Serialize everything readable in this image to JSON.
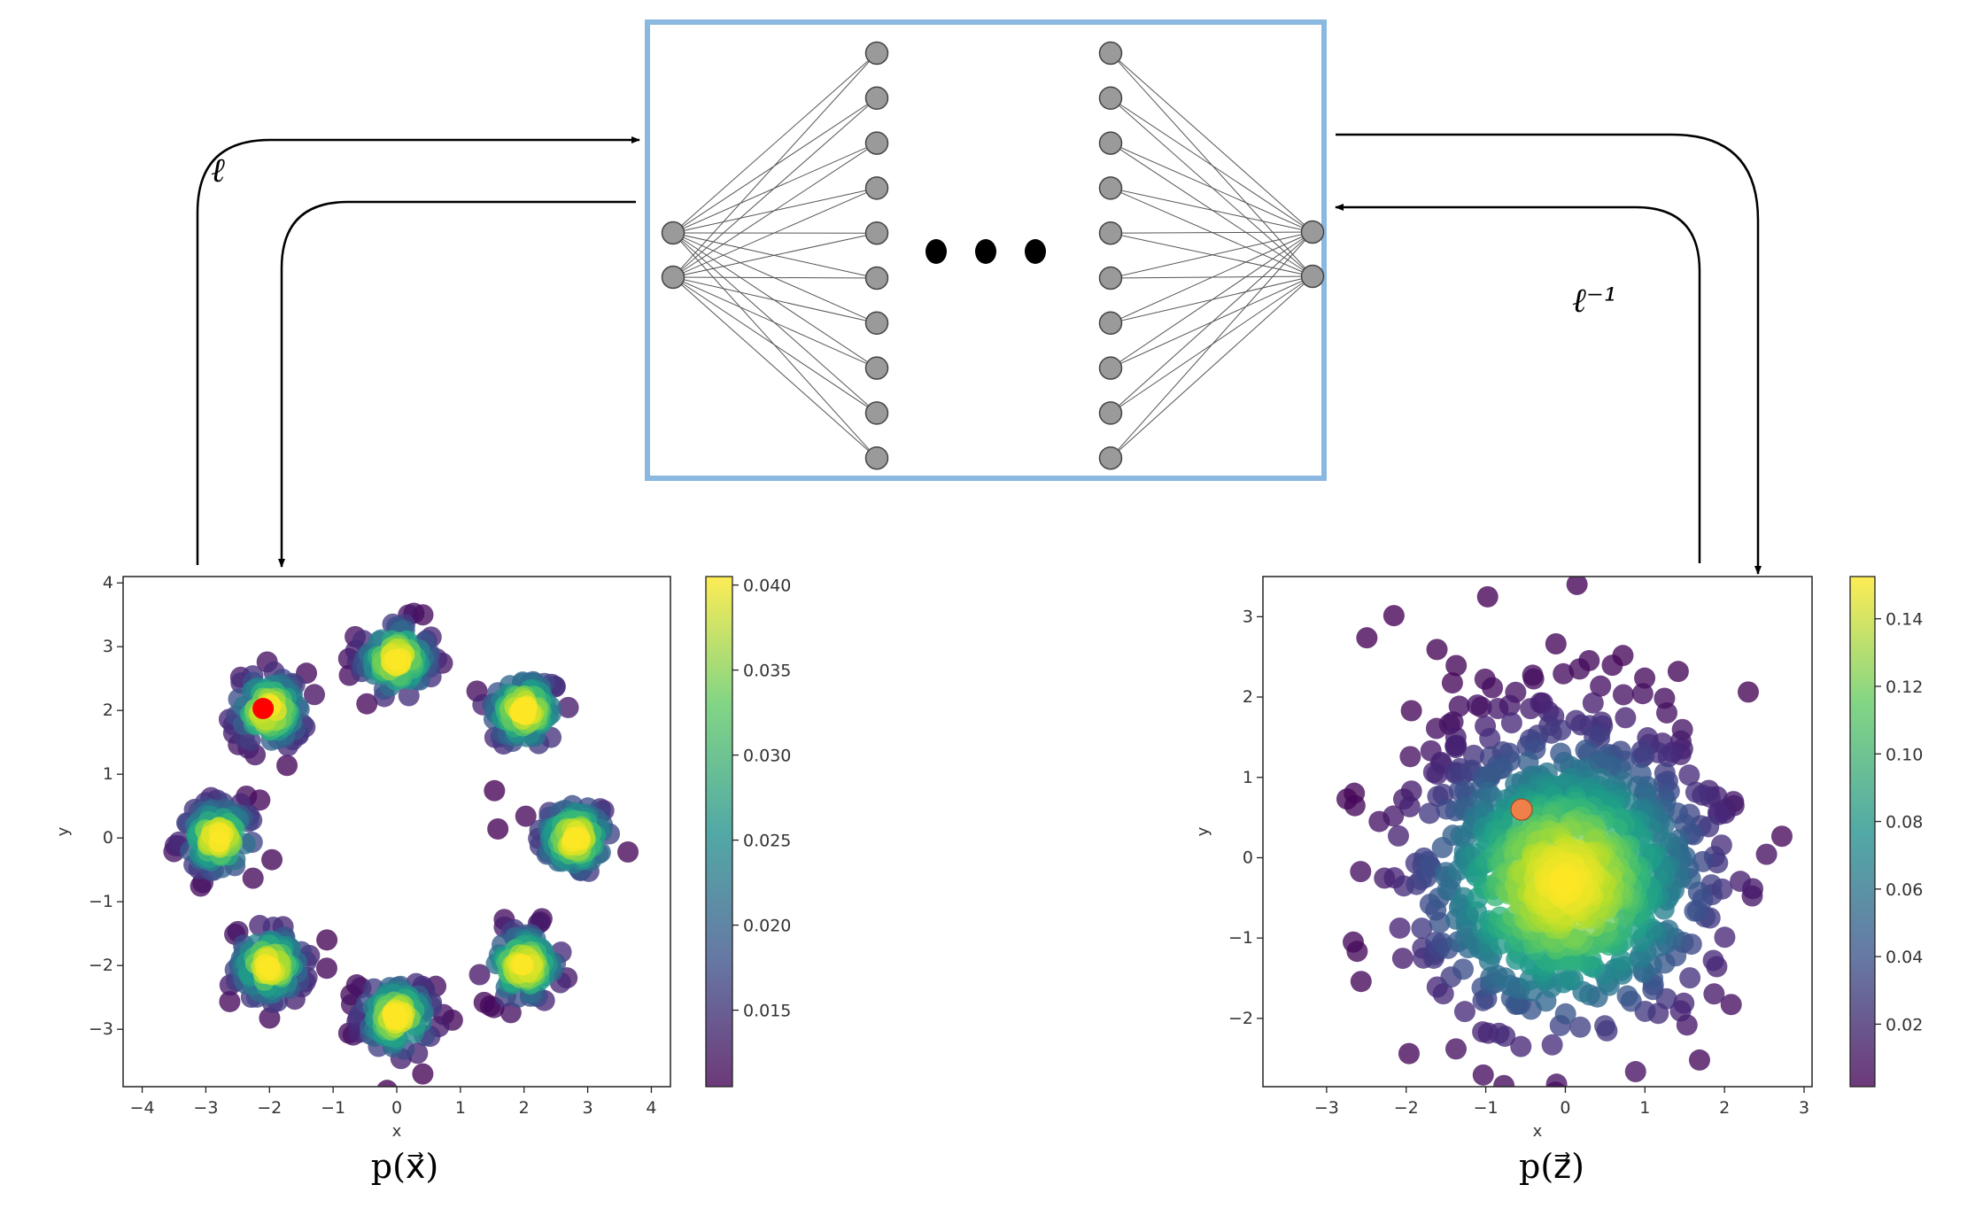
{
  "diagram": {
    "forward_label": "ℓ",
    "inverse_label": "ℓ⁻¹",
    "network": {
      "input_nodes": 2,
      "hidden_nodes_first": 10,
      "hidden_nodes_last": 10,
      "output_nodes": 2,
      "ellipsis_dots": 3,
      "frame_color": "#7fb0de",
      "node_color": "#9a9a9a"
    }
  },
  "chart_data": [
    {
      "type": "scatter",
      "caption": "p(x⃗)",
      "xlabel": "x",
      "ylabel": "y",
      "xlim": [
        -4.3,
        4.3
      ],
      "ylim": [
        -3.9,
        4.1
      ],
      "xticks": [
        -4,
        -3,
        -2,
        -1,
        0,
        1,
        2,
        3,
        4
      ],
      "yticks": [
        -3,
        -2,
        -1,
        0,
        1,
        2,
        3,
        4
      ],
      "tick_labels_x": [
        "−4",
        "−3",
        "−2",
        "−1",
        "0",
        "1",
        "2",
        "3",
        "4"
      ],
      "tick_labels_y": [
        "−3",
        "−2",
        "−1",
        "0",
        "1",
        "2",
        "3",
        "4"
      ],
      "distribution": "mixture of 8 gaussians on a ring of radius ~2.8",
      "cluster_centers": [
        [
          2.8,
          0
        ],
        [
          2.0,
          2.0
        ],
        [
          0,
          2.8
        ],
        [
          -2.0,
          2.0
        ],
        [
          -2.8,
          0
        ],
        [
          -2.0,
          -2.0
        ],
        [
          0,
          -2.8
        ],
        [
          2.0,
          -2.0
        ]
      ],
      "cluster_std": 0.3,
      "num_points": 800,
      "colorbar": {
        "min": 0.0105,
        "max": 0.0405,
        "ticks": [
          0.015,
          0.02,
          0.025,
          0.03,
          0.035,
          0.04
        ],
        "tick_labels": [
          "0.015",
          "0.020",
          "0.025",
          "0.030",
          "0.035",
          "0.040"
        ]
      },
      "highlight_point": {
        "x": -2.1,
        "y": 2.03,
        "color": "#ff0000"
      }
    },
    {
      "type": "scatter",
      "caption": "p(z⃗)",
      "xlabel": "x",
      "ylabel": "y",
      "xlim": [
        -3.8,
        3.1
      ],
      "ylim": [
        -2.85,
        3.5
      ],
      "xticks": [
        -3,
        -2,
        -1,
        0,
        1,
        2,
        3
      ],
      "yticks": [
        -2,
        -1,
        0,
        1,
        2,
        3
      ],
      "tick_labels_x": [
        "−3",
        "−2",
        "−1",
        "0",
        "1",
        "2",
        "3"
      ],
      "tick_labels_y": [
        "−2",
        "−1",
        "0",
        "1",
        "2",
        "3"
      ],
      "distribution": "standard normal",
      "num_points": 900,
      "colorbar": {
        "min": 0.0015,
        "max": 0.1525,
        "ticks": [
          0.02,
          0.04,
          0.06,
          0.08,
          0.1,
          0.12,
          0.14
        ],
        "tick_labels": [
          "0.02",
          "0.04",
          "0.06",
          "0.08",
          "0.10",
          "0.12",
          "0.14"
        ]
      },
      "highlight_point": {
        "x": -0.55,
        "y": 0.6,
        "color": "#f0804a"
      }
    }
  ]
}
